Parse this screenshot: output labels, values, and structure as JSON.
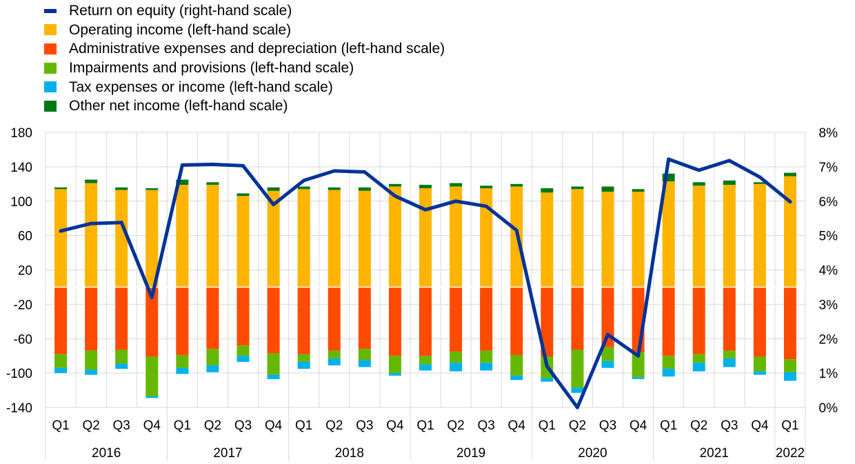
{
  "legend": [
    {
      "label": "Return on equity (right-hand scale)",
      "color": "#003299",
      "kind": "line"
    },
    {
      "label": "Operating income (left-hand scale)",
      "color": "#FFB400",
      "kind": "bar"
    },
    {
      "label": "Administrative expenses and depreciation (left-hand scale)",
      "color": "#FF4B00",
      "kind": "bar"
    },
    {
      "label": "Impairments and provisions (left-hand scale)",
      "color": "#65B800",
      "kind": "bar"
    },
    {
      "label": "Tax expenses or income (left-hand scale)",
      "color": "#00B1EA",
      "kind": "bar"
    },
    {
      "label": "Other net income (left-hand scale)",
      "color": "#007816",
      "kind": "bar"
    }
  ],
  "chart_data": {
    "type": "bar",
    "categories": [
      "Q1",
      "Q2",
      "Q3",
      "Q4",
      "Q1",
      "Q2",
      "Q3",
      "Q4",
      "Q1",
      "Q2",
      "Q3",
      "Q4",
      "Q1",
      "Q2",
      "Q3",
      "Q4",
      "Q1",
      "Q2",
      "Q3",
      "Q4",
      "Q1",
      "Q2",
      "Q3",
      "Q4",
      "Q1"
    ],
    "years": [
      {
        "label": "2016",
        "count": 4
      },
      {
        "label": "2017",
        "count": 4
      },
      {
        "label": "2018",
        "count": 4
      },
      {
        "label": "2019",
        "count": 4
      },
      {
        "label": "2020",
        "count": 4
      },
      {
        "label": "2021",
        "count": 4
      },
      {
        "label": "2022",
        "count": 1
      }
    ],
    "series": [
      {
        "name": "Operating income (left-hand scale)",
        "color": "#FFB400",
        "axis": "left",
        "values": [
          114,
          121,
          113,
          113,
          119,
          119,
          106,
          112,
          114,
          113,
          112,
          117,
          115,
          117,
          115,
          117,
          110,
          114,
          111,
          111,
          123,
          118,
          119,
          120,
          129
        ]
      },
      {
        "name": "Administrative expenses and depreciation (left-hand scale)",
        "color": "#FF4B00",
        "axis": "left",
        "values": [
          -78,
          -74,
          -73,
          -81,
          -79,
          -72,
          -68,
          -77,
          -78,
          -74,
          -72,
          -80,
          -80,
          -75,
          -74,
          -79,
          -81,
          -73,
          -70,
          -76,
          -80,
          -78,
          -74,
          -81,
          -84
        ]
      },
      {
        "name": "Impairments and provisions (left-hand scale)",
        "color": "#65B800",
        "axis": "left",
        "values": [
          -16,
          -22,
          -16,
          -46,
          -15,
          -19,
          -12,
          -25,
          -9,
          -9,
          -13,
          -20,
          -10,
          -13,
          -14,
          -24,
          -25,
          -44,
          -16,
          -29,
          -15,
          -10,
          -9,
          -17,
          -15
        ]
      },
      {
        "name": "Tax expenses or income (left-hand scale)",
        "color": "#00B1EA",
        "axis": "left",
        "values": [
          -6,
          -6,
          -6,
          -2,
          -7,
          -8,
          -7,
          -5,
          -8,
          -8,
          -8,
          -3,
          -7,
          -10,
          -9,
          -5,
          -4,
          -6,
          -8,
          -2,
          -9,
          -10,
          -10,
          -4,
          -10
        ]
      },
      {
        "name": "Other net income (left-hand scale)",
        "color": "#007816",
        "axis": "left",
        "values": [
          2,
          4,
          3,
          2,
          6,
          3,
          3,
          4,
          3,
          3,
          4,
          3,
          4,
          4,
          3,
          3,
          5,
          3,
          6,
          3,
          9,
          4,
          5,
          2,
          4
        ]
      },
      {
        "name": "Return on equity (right-hand scale)",
        "color": "#003299",
        "axis": "right",
        "type": "line",
        "values": [
          5.13,
          5.35,
          5.38,
          3.2,
          7.05,
          7.07,
          7.03,
          5.9,
          6.6,
          6.88,
          6.85,
          6.15,
          5.75,
          6.0,
          5.85,
          5.15,
          1.2,
          0.0,
          2.12,
          1.5,
          7.22,
          6.9,
          7.18,
          6.7,
          5.98
        ]
      }
    ],
    "ylim": [
      -140,
      180
    ],
    "yticks": [
      "180",
      "140",
      "100",
      "60",
      "20",
      "-20",
      "-60",
      "-100",
      "-140"
    ],
    "y2lim": [
      0,
      8
    ],
    "y2ticks": [
      "8%",
      "7%",
      "6%",
      "5%",
      "4%",
      "3%",
      "2%",
      "1%",
      "0%"
    ],
    "grid": true,
    "legend_position": "top-left"
  }
}
